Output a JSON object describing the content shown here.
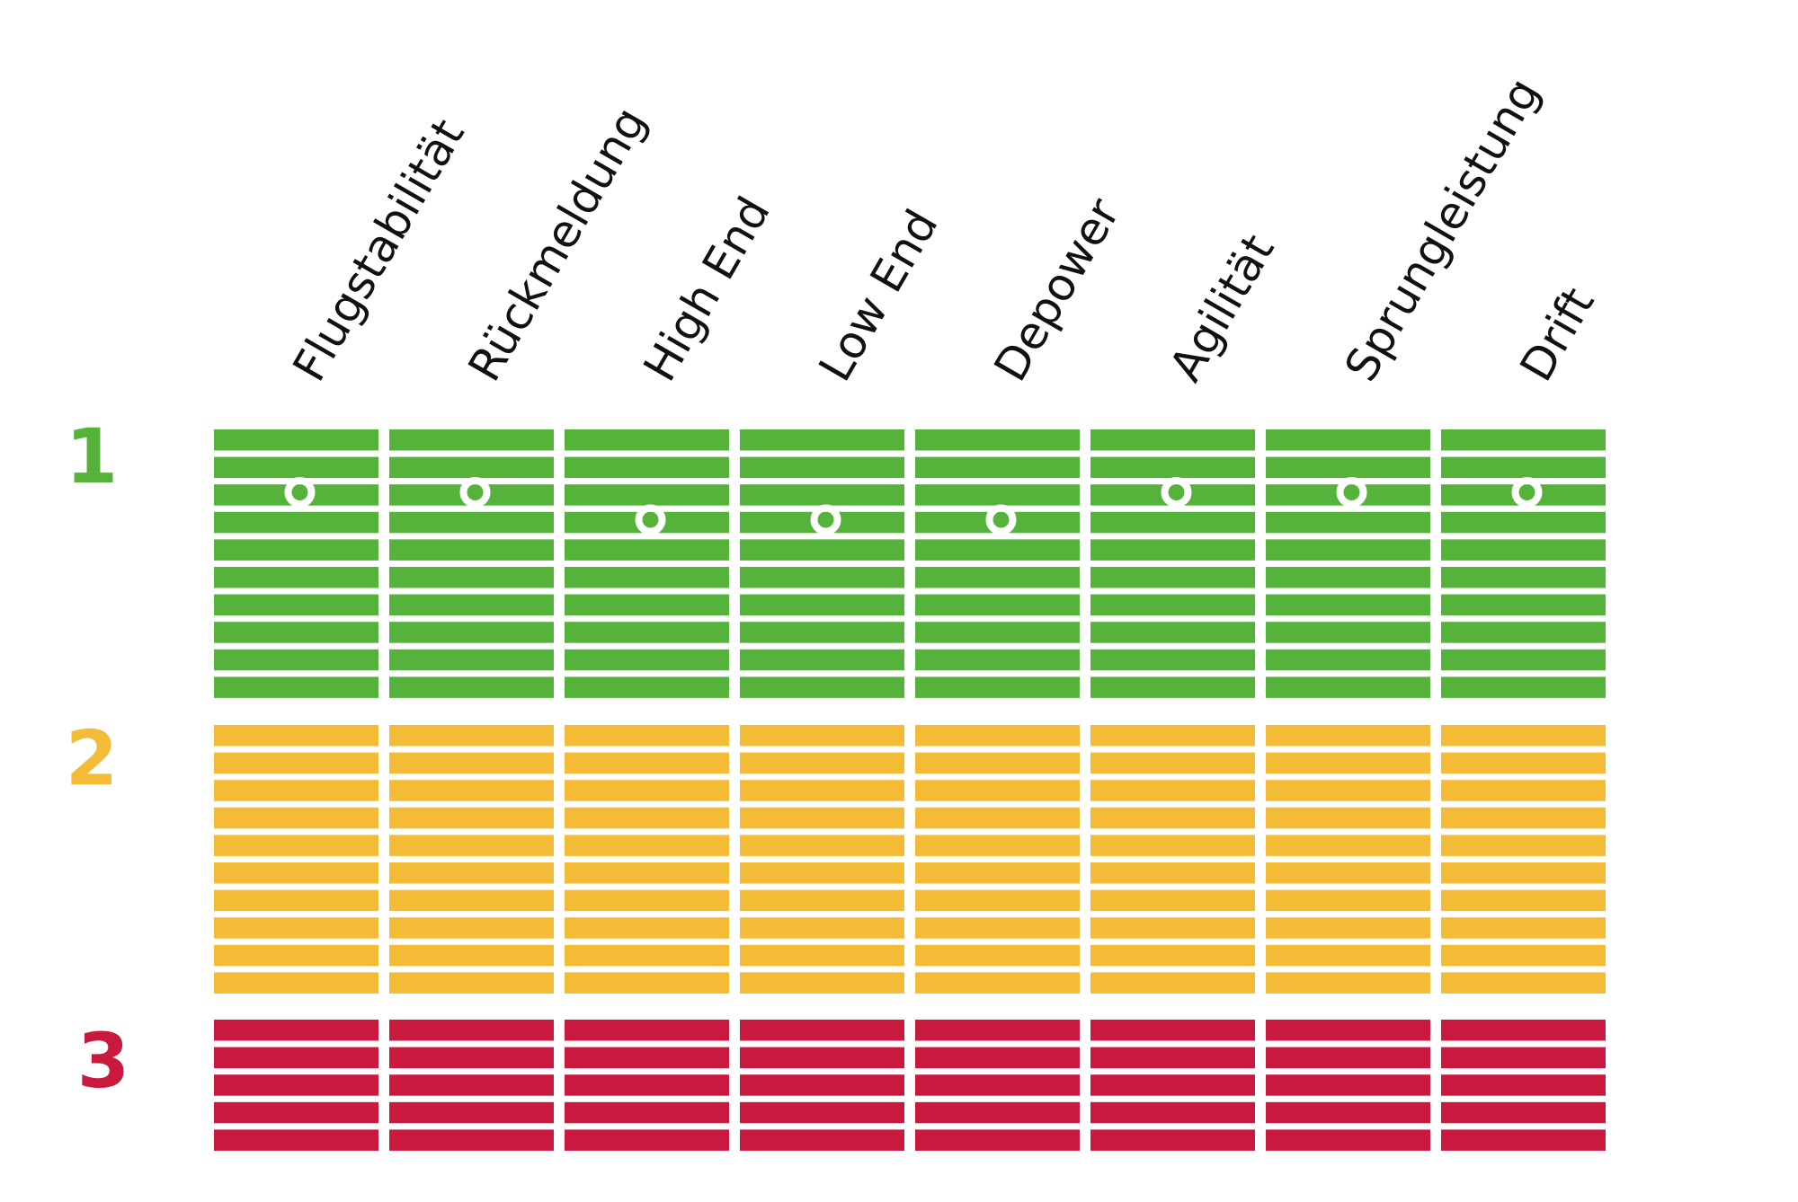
{
  "chart_data": {
    "type": "heatmap",
    "categories": [
      "Flugstabilität",
      "Rückmeldung",
      "High End",
      "Low End",
      "Depower",
      "Agilität",
      "Sprungleistung",
      "Drift"
    ],
    "groups": [
      {
        "label": "1",
        "color": "#55b33b",
        "rows": 10
      },
      {
        "label": "2",
        "color": "#f4bb36",
        "rows": 10
      },
      {
        "label": "3",
        "color": "#c9193e",
        "rows": 5
      }
    ],
    "series": [
      {
        "values": [
          3,
          3,
          4,
          4,
          4,
          3,
          3,
          3
        ]
      }
    ],
    "value_axis": {
      "direction": "top-to-bottom",
      "range": [
        1,
        25
      ]
    },
    "grid": false,
    "legend": "none"
  }
}
